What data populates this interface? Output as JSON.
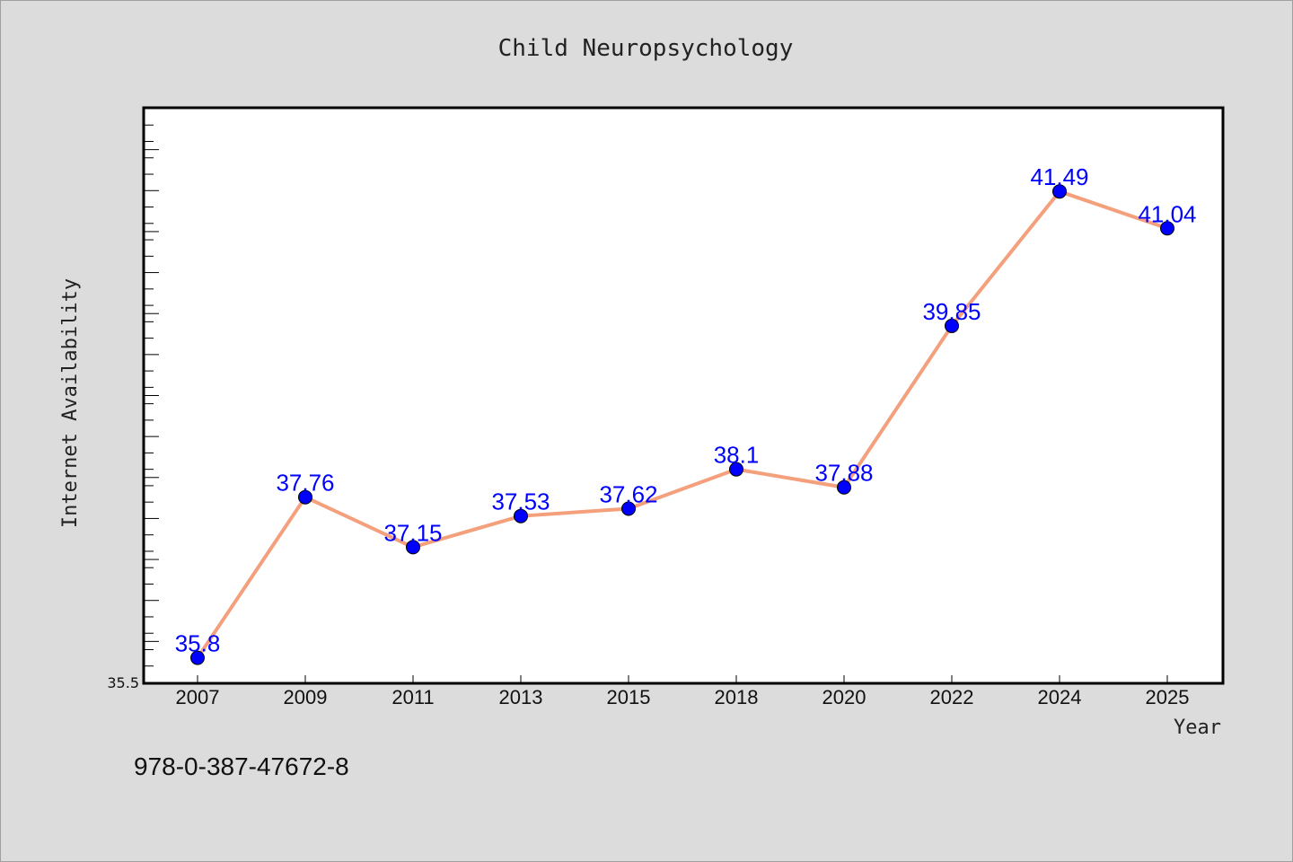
{
  "isbn": "978-0-387-47672-8",
  "colors": {
    "line": "#f4a07c",
    "marker": "#0000ff",
    "label": "#0000ff",
    "plot_bg": "#ffffff",
    "page_bg": "#dcdcdc"
  },
  "chart_data": {
    "type": "line",
    "title": "Child Neuropsychology",
    "xlabel": "Year",
    "ylabel": "Internet Availability",
    "categories": [
      "2007",
      "2009",
      "2011",
      "2013",
      "2015",
      "2018",
      "2020",
      "2022",
      "2024",
      "2025"
    ],
    "series": [
      {
        "values": [
          35.8,
          37.76,
          37.15,
          37.53,
          37.62,
          38.1,
          37.88,
          39.85,
          41.49,
          41.04
        ]
      }
    ],
    "data_labels": [
      "35.8",
      "37.76",
      "37.15",
      "37.53",
      "37.62",
      "38.1",
      "37.88",
      "39.85",
      "41.49",
      "41.04"
    ],
    "ylim": [
      35.5,
      42.5
    ],
    "y_tick_labels": [
      "35.5"
    ],
    "grid": false,
    "legend": "none"
  }
}
